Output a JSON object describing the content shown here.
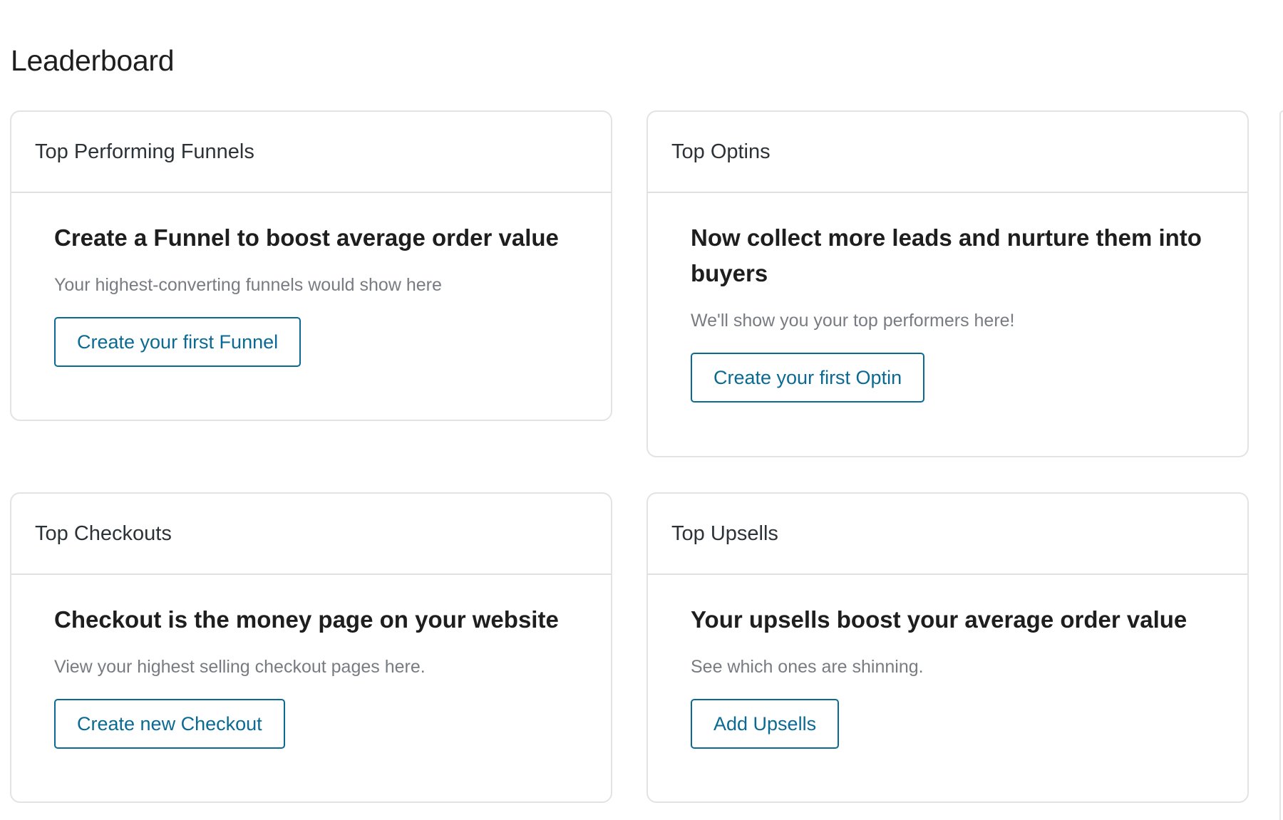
{
  "page": {
    "title": "Leaderboard"
  },
  "cards": [
    {
      "title": "Top Performing Funnels",
      "heading": "Create a Funnel to boost average order value",
      "subtitle": "Your highest-converting funnels would show here",
      "button": "Create your first Funnel"
    },
    {
      "title": "Top Optins",
      "heading": "Now collect more leads and nurture them into buyers",
      "subtitle": "We'll show you your top performers here!",
      "button": "Create your first Optin"
    },
    {
      "title": "Top Checkouts",
      "heading": "Checkout is the money page on your website",
      "subtitle": "View your highest selling checkout pages here.",
      "button": "Create new Checkout"
    },
    {
      "title": "Top Upsells",
      "heading": "Your upsells boost your average order value",
      "subtitle": "See which ones are shinning.",
      "button": "Add Upsells"
    }
  ],
  "colors": {
    "accent": "#0a6a93",
    "border": "#e3e3e3",
    "muted_text": "#787c82"
  }
}
